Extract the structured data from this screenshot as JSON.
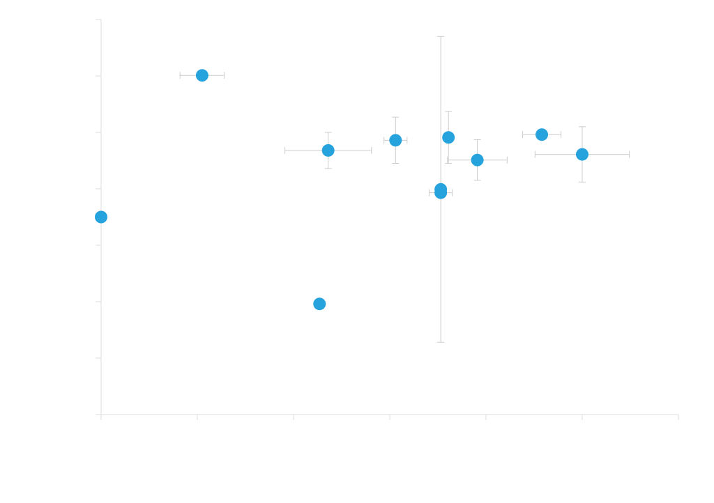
{
  "chart_data": {
    "type": "scatter",
    "title": "",
    "xlabel": "",
    "ylabel": "",
    "xlim": [
      0,
      6
    ],
    "ylim": [
      0,
      7
    ],
    "x_ticks": [
      0,
      1,
      2,
      3,
      4,
      5,
      6
    ],
    "y_ticks": [
      0,
      1,
      2,
      3,
      4,
      5,
      6,
      7
    ],
    "grid": false,
    "legend": "none",
    "colors": {
      "point": "#26A3DD",
      "error_bar": "#CCCCCC",
      "axis": "#DDDDDD"
    },
    "series": [
      {
        "points": [
          {
            "x": 0.0,
            "y": 3.5
          },
          {
            "x": 1.05,
            "y": 6.01,
            "xerr": 0.23
          },
          {
            "x": 2.27,
            "y": 1.96
          },
          {
            "x": 2.36,
            "y": 4.68,
            "xerr": 0.45,
            "yerr": 0.32
          },
          {
            "x": 3.06,
            "y": 4.86,
            "xerr": 0.12,
            "yerr": 0.41
          },
          {
            "x": 3.53,
            "y": 3.99,
            "yerr": 2.71
          },
          {
            "x": 3.53,
            "y": 3.93,
            "xerr": 0.12
          },
          {
            "x": 3.61,
            "y": 4.91,
            "yerr": 0.46
          },
          {
            "x": 3.91,
            "y": 4.51,
            "xerr": 0.31,
            "yerr": 0.36
          },
          {
            "x": 4.58,
            "y": 4.96,
            "xerr": 0.2
          },
          {
            "x": 5.0,
            "y": 4.61,
            "xerr": 0.49,
            "yerr": 0.49
          }
        ]
      }
    ]
  }
}
